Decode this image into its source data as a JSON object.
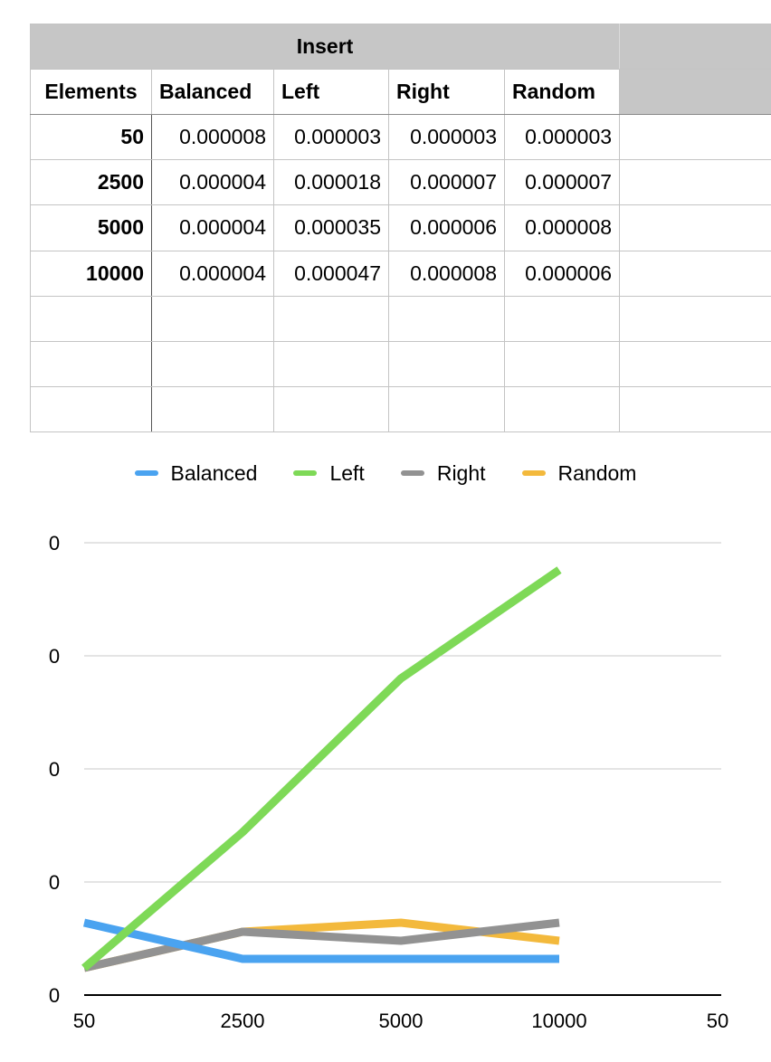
{
  "table": {
    "title": "Insert",
    "headers": [
      "Elements",
      "Balanced",
      "Left",
      "Right",
      "Random"
    ],
    "rows": [
      [
        "50",
        "0.000008",
        "0.000003",
        "0.000003",
        "0.000003"
      ],
      [
        "2500",
        "0.000004",
        "0.000018",
        "0.000007",
        "0.000007"
      ],
      [
        "5000",
        "0.000004",
        "0.000035",
        "0.000006",
        "0.000008"
      ],
      [
        "10000",
        "0.000004",
        "0.000047",
        "0.000008",
        "0.000006"
      ]
    ]
  },
  "chart_data": {
    "type": "line",
    "title": "",
    "xlabel": "",
    "ylabel": "",
    "x": [
      "50",
      "2500",
      "5000",
      "10000"
    ],
    "x_tick_labels": [
      "50",
      "2500",
      "5000",
      "10000",
      "50"
    ],
    "y_tick_labels": [
      "0",
      "0",
      "0",
      "0",
      "0"
    ],
    "ylim": [
      0,
      5e-05
    ],
    "grid": true,
    "legend": "top-center",
    "series": [
      {
        "name": "Balanced",
        "color": "#4aa3f0",
        "values": [
          8e-06,
          4e-06,
          4e-06,
          4e-06
        ]
      },
      {
        "name": "Left",
        "color": "#7ed957",
        "values": [
          3e-06,
          1.8e-05,
          3.5e-05,
          4.7e-05
        ]
      },
      {
        "name": "Right",
        "color": "#929292",
        "values": [
          3e-06,
          7e-06,
          6e-06,
          8e-06
        ]
      },
      {
        "name": "Random",
        "color": "#f3b93c",
        "values": [
          3e-06,
          7e-06,
          8e-06,
          6e-06
        ]
      }
    ]
  }
}
